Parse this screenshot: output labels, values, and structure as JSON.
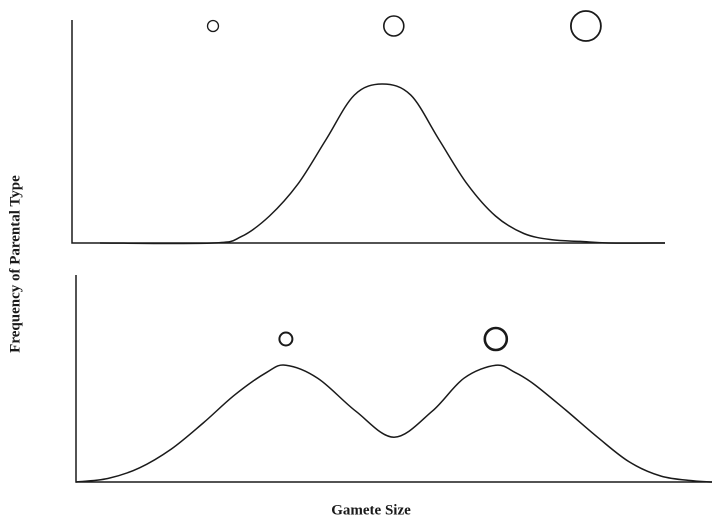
{
  "chart_data": [
    {
      "type": "line",
      "panel": "top",
      "shape": "unimodal",
      "xlabel": "Gamete Size",
      "ylabel": "Frequency of Parental Type",
      "xlim": [
        0,
        100
      ],
      "ylim": [
        0,
        1
      ],
      "grid": false,
      "legend": "none",
      "x": [
        0,
        20,
        25,
        30,
        35,
        40,
        45,
        50,
        55,
        60,
        65,
        70,
        75,
        80,
        85,
        90,
        100
      ],
      "y": [
        0,
        0,
        0.04,
        0.17,
        0.37,
        0.65,
        0.93,
        1.0,
        0.93,
        0.65,
        0.37,
        0.17,
        0.06,
        0.02,
        0.01,
        0,
        0
      ],
      "gametes": [
        {
          "x": 20,
          "size": "small"
        },
        {
          "x": 52,
          "size": "medium"
        },
        {
          "x": 86,
          "size": "large"
        }
      ]
    },
    {
      "type": "line",
      "panel": "bottom",
      "shape": "bimodal",
      "xlabel": "Gamete Size",
      "ylabel": "Frequency of Parental Type",
      "xlim": [
        0,
        100
      ],
      "ylim": [
        0,
        1
      ],
      "grid": false,
      "legend": "none",
      "x": [
        0,
        5,
        10,
        15,
        20,
        25,
        30,
        33,
        38,
        44,
        50,
        56,
        61,
        66,
        69,
        72,
        77,
        82,
        87,
        92,
        97,
        100
      ],
      "y": [
        0,
        0.03,
        0.12,
        0.28,
        0.5,
        0.74,
        0.93,
        0.99,
        0.88,
        0.6,
        0.38,
        0.6,
        0.88,
        0.99,
        0.93,
        0.83,
        0.61,
        0.38,
        0.17,
        0.05,
        0.01,
        0
      ],
      "gametes": [
        {
          "x": 33,
          "size": "small"
        },
        {
          "x": 66,
          "size": "large"
        }
      ]
    }
  ],
  "labels": {
    "ylabel": "Frequency of Parental Type",
    "xlabel": "Gamete Size"
  }
}
